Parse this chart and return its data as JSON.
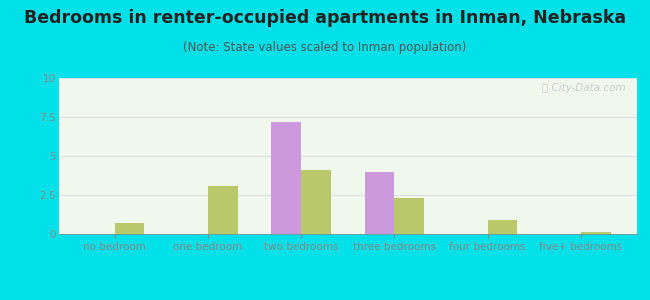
{
  "title": "Bedrooms in renter-occupied apartments in Inman, Nebraska",
  "subtitle": "(Note: State values scaled to Inman population)",
  "categories": [
    "no bedroom",
    "one bedroom",
    "two bedrooms",
    "three bedrooms",
    "four bedrooms",
    "five+ bedrooms"
  ],
  "inman_values": [
    0,
    0,
    7.2,
    4.0,
    0,
    0
  ],
  "nebraska_values": [
    0.7,
    3.1,
    4.1,
    2.3,
    0.9,
    0.15
  ],
  "inman_color": "#cc99dd",
  "nebraska_color": "#b8c86a",
  "background_outer": "#00e0e8",
  "background_inner": "#f0f8ee",
  "ylim": [
    0,
    10
  ],
  "yticks": [
    0,
    2.5,
    5,
    7.5,
    10
  ],
  "ytick_labels": [
    "0",
    "2.5",
    "5",
    "7.5",
    "10"
  ],
  "bar_width": 0.32,
  "title_fontsize": 12.5,
  "subtitle_fontsize": 8.5,
  "tick_fontsize": 7.5,
  "legend_fontsize": 9.5,
  "axis_color": "#888888",
  "text_color": "#555555",
  "watermark_color": "#cccccc",
  "grid_color": "#dddddd"
}
